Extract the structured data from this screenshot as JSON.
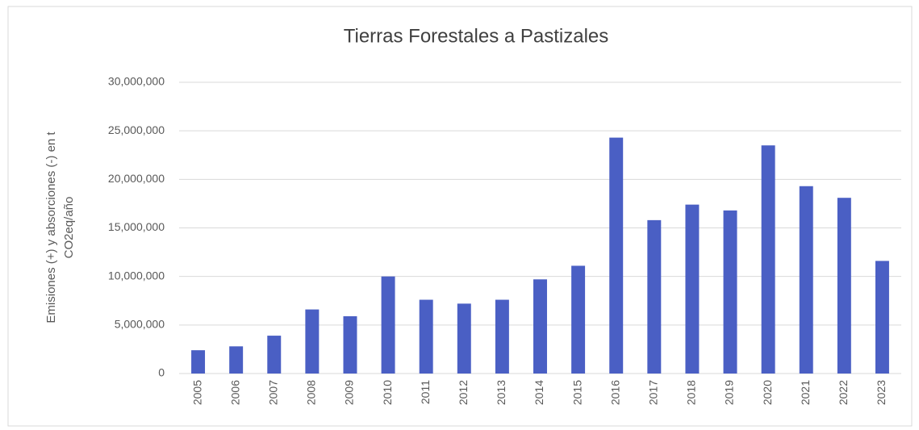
{
  "chart_data": {
    "type": "bar",
    "title": "Tierras Forestales a Pastizales",
    "y_label": [
      "Emisiones (+) y absorciones (-) en t",
      "CO2eq/año"
    ],
    "categories": [
      "2005",
      "2006",
      "2007",
      "2008",
      "2009",
      "2010",
      "2011",
      "2012",
      "2013",
      "2014",
      "2015",
      "2016",
      "2017",
      "2018",
      "2019",
      "2020",
      "2021",
      "2022",
      "2023"
    ],
    "values": [
      2400000,
      2800000,
      3900000,
      6600000,
      5900000,
      10000000,
      7600000,
      7200000,
      7600000,
      9700000,
      11100000,
      24300000,
      15800000,
      17400000,
      16800000,
      23500000,
      19300000,
      18100000,
      11600000
    ],
    "color": "#4a5fc4",
    "ylim": [
      0,
      30000000
    ],
    "yticks": [
      0,
      {
        "value": 5000000,
        "label": "5,000,000"
      },
      {
        "value": 10000000,
        "label": "10,000,000"
      },
      {
        "value": 15000000,
        "label": "15,000,000"
      },
      {
        "value": 20000000,
        "label": "20,000,000"
      },
      {
        "value": 25000000,
        "label": "25,000,000"
      },
      {
        "value": 30000000,
        "label": "30,000,000"
      }
    ],
    "grid": true
  }
}
